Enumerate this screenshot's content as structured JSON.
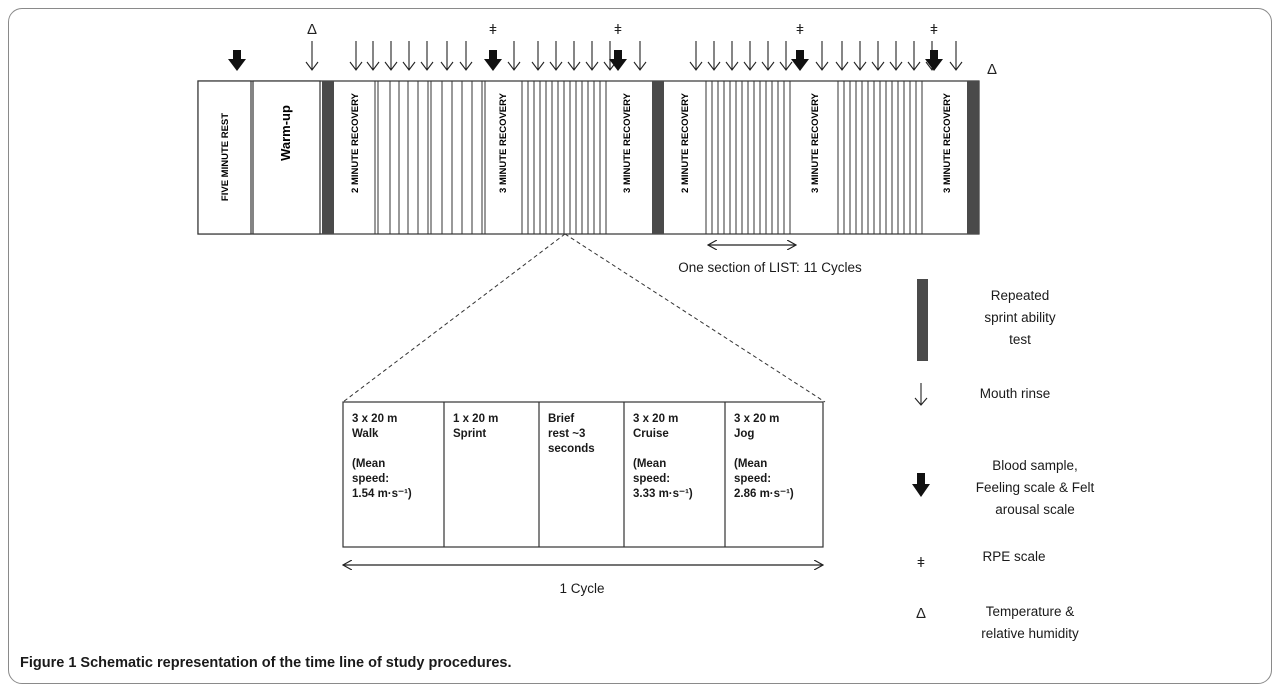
{
  "timeline": {
    "blocks": [
      {
        "label": "FIVE MINUTE REST"
      },
      {
        "label": "Warm-up"
      },
      {
        "label": "2 MINUTE RECOVERY"
      },
      {
        "label": "3 MINUTE RECOVERY"
      },
      {
        "label": "3 MINUTE RECOVERY"
      },
      {
        "label": "2 MINUTE RECOVERY"
      },
      {
        "label": "3 MINUTE RECOVERY"
      },
      {
        "label": "3 MINUTE RECOVERY"
      }
    ],
    "section_label": "One section of LIST: 11 Cycles"
  },
  "cycle": {
    "cells": [
      {
        "lines": [
          "3 x 20 m",
          "Walk",
          "",
          "(Mean",
          "speed:",
          "1.54 m·s⁻¹)"
        ]
      },
      {
        "lines": [
          "1 x 20 m",
          "Sprint"
        ]
      },
      {
        "lines": [
          "Brief",
          "rest ~3",
          "seconds"
        ]
      },
      {
        "lines": [
          "3 x 20 m",
          "Cruise",
          "",
          "(Mean",
          "speed:",
          "3.33 m·s⁻¹)"
        ]
      },
      {
        "lines": [
          "3 x 20 m",
          "Jog",
          "",
          "(Mean",
          "speed:",
          "2.86 m·s⁻¹)"
        ]
      }
    ],
    "span_label": "1 Cycle"
  },
  "legend": {
    "items": [
      {
        "icon": "rsa-bar-icon",
        "lines": [
          "Repeated",
          "sprint ability",
          "test"
        ]
      },
      {
        "icon": "thin-arrow-icon",
        "lines": [
          "Mouth rinse"
        ]
      },
      {
        "icon": "thick-arrow-icon",
        "lines": [
          "Blood sample,",
          "Feeling scale & Felt",
          "arousal scale"
        ]
      },
      {
        "icon": "rpe-symbol",
        "symbol": "ǂ",
        "lines": [
          "RPE scale"
        ]
      },
      {
        "icon": "delta-symbol",
        "symbol": "Δ",
        "lines": [
          "Temperature &",
          "relative humidity"
        ]
      }
    ]
  },
  "caption": {
    "label": "Figure 1",
    "text": " Schematic representation of the time line of study procedures."
  },
  "colors": {
    "rsa_fill": "#4a4a4a",
    "line": "#222222"
  }
}
